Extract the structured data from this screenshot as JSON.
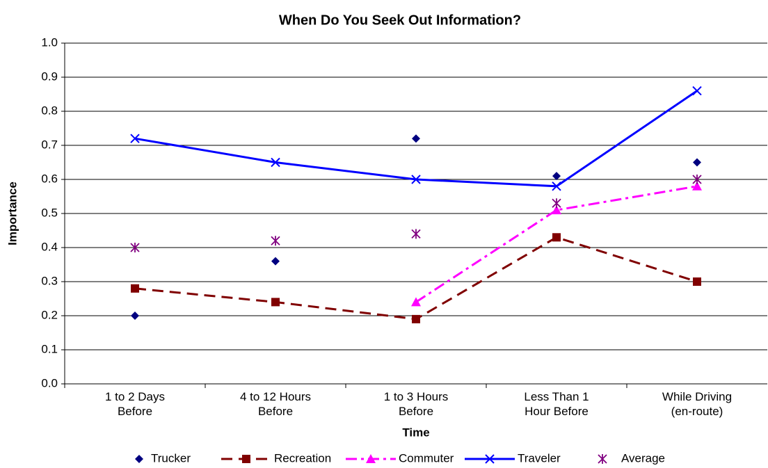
{
  "chart_data": {
    "type": "line",
    "title": "When Do You Seek Out Information?",
    "x_label": "Time",
    "y_label": "Importance",
    "categories": [
      "1 to 2 Days Before",
      "4 to 12 Hours Before",
      "1 to 3 Hours Before",
      "Less Than 1 Hour Before",
      "While Driving (en-route)"
    ],
    "ylim": [
      0,
      1
    ],
    "yticks": [
      {
        "value": 0,
        "label": "0.0"
      },
      0.1,
      0.2,
      0.3,
      0.4,
      0.5,
      0.6,
      0.7,
      0.8,
      0.9,
      {
        "value": 1,
        "label": "1.0"
      }
    ],
    "grid": true,
    "legend": "bottom",
    "series": [
      {
        "name": "Trucker",
        "color": "#000080",
        "line": false,
        "marker": "diamond",
        "values": [
          0.2,
          0.36,
          0.72,
          0.61,
          0.65
        ]
      },
      {
        "name": "Recreation",
        "color": "#800000",
        "line": true,
        "dash": "long",
        "marker": "square",
        "values": [
          0.28,
          0.24,
          0.19,
          0.43,
          0.3
        ]
      },
      {
        "name": "Commuter",
        "color": "#ff00ff",
        "line": true,
        "dash": "dashdot",
        "marker": "triangle",
        "values": [
          null,
          null,
          0.24,
          0.51,
          0.58
        ]
      },
      {
        "name": "Traveler",
        "color": "#0000ff",
        "line": true,
        "dash": "solid",
        "marker": "x",
        "values": [
          0.72,
          0.65,
          0.6,
          0.58,
          0.86
        ]
      },
      {
        "name": "Average",
        "color": "#800080",
        "line": false,
        "marker": "star",
        "values": [
          0.4,
          0.42,
          0.44,
          0.53,
          0.6
        ]
      }
    ]
  }
}
